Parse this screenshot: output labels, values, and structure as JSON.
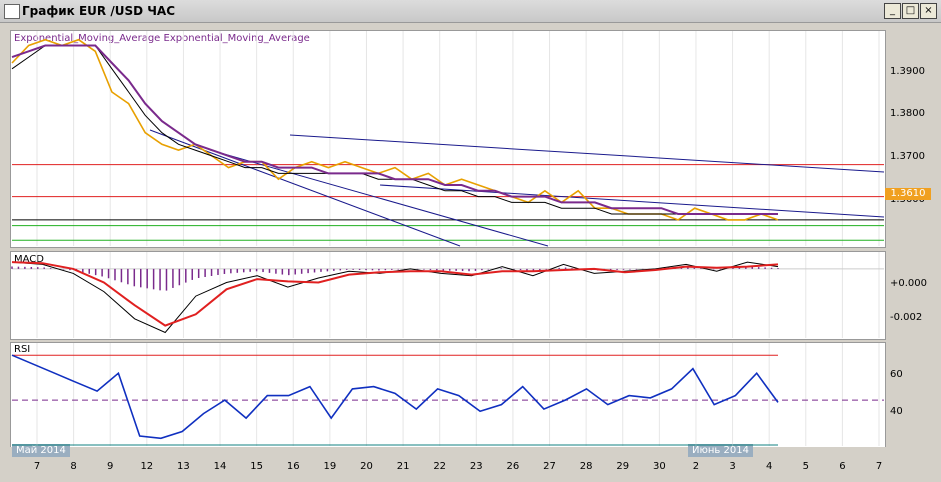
{
  "window": {
    "title": "График EUR /USD ЧАС",
    "buttons": {
      "minimize": "_",
      "restore": "□",
      "close": "×"
    }
  },
  "indicators": {
    "main_label": "Exponential_Moving_Average Exponential_Moving_Average",
    "macd_label": "MACD",
    "rsi_label": "RSI"
  },
  "axes": {
    "price_ticks": [
      "1.3900",
      "1.3800",
      "1.3700",
      "1.3600"
    ],
    "current_price": "1.3610",
    "macd_ticks": [
      "+0.000",
      "-0.002"
    ],
    "rsi_ticks": [
      "60",
      "40"
    ],
    "x_ticks": [
      "7",
      "8",
      "9",
      "12",
      "13",
      "14",
      "15",
      "16",
      "19",
      "20",
      "21",
      "22",
      "23",
      "26",
      "27",
      "28",
      "29",
      "30",
      "2",
      "3",
      "4",
      "5",
      "6",
      "7"
    ],
    "month_markers": [
      "Май 2014",
      "Июнь 2014"
    ]
  },
  "colors": {
    "price": "#e8a000",
    "ema_fast": "#000000",
    "ema_slow": "#7a2a8c",
    "trend": "#1a1a8c",
    "level_red": "#e02020",
    "level_green": "#20b020",
    "macd_signal": "#e02020",
    "macd_hist": "#7a2a8c",
    "rsi": "#1030c0",
    "rsi_high": "#e02020",
    "rsi_low": "#108080"
  },
  "chart_data": [
    {
      "type": "line",
      "title": "",
      "ylim": [
        1.3565,
        1.3935
      ],
      "series": [
        {
          "name": "",
          "values": [
            1.388,
            1.391,
            1.392,
            1.391,
            1.392,
            1.39,
            1.383,
            1.381,
            1.376,
            1.374,
            1.373,
            1.374,
            1.372,
            1.37,
            1.371,
            1.371,
            1.368,
            1.37,
            1.371,
            1.37,
            1.371,
            1.37,
            1.369,
            1.37,
            1.368,
            1.369,
            1.367,
            1.368,
            1.367,
            1.366,
            1.365,
            1.364,
            1.366,
            1.364,
            1.366,
            1.363,
            1.363,
            1.362,
            1.362,
            1.362,
            1.361,
            1.363,
            1.362,
            1.361,
            1.361,
            1.362,
            1.361
          ]
        },
        {
          "name": "",
          "values": [
            1.387,
            1.389,
            1.391,
            1.391,
            1.391,
            1.391,
            1.387,
            1.383,
            1.379,
            1.376,
            1.374,
            1.373,
            1.372,
            1.371,
            1.37,
            1.37,
            1.369,
            1.369,
            1.369,
            1.369,
            1.369,
            1.369,
            1.368,
            1.368,
            1.368,
            1.367,
            1.366,
            1.366,
            1.365,
            1.365,
            1.364,
            1.364,
            1.364,
            1.363,
            1.363,
            1.363,
            1.362,
            1.362,
            1.362,
            1.362,
            1.362,
            1.362,
            1.362,
            1.362,
            1.362,
            1.362,
            1.362
          ]
        },
        {
          "name": "",
          "values": [
            1.389,
            1.39,
            1.391,
            1.391,
            1.391,
            1.391,
            1.388,
            1.385,
            1.381,
            1.378,
            1.376,
            1.374,
            1.373,
            1.372,
            1.371,
            1.371,
            1.37,
            1.37,
            1.37,
            1.369,
            1.369,
            1.369,
            1.369,
            1.368,
            1.368,
            1.368,
            1.367,
            1.367,
            1.366,
            1.366,
            1.365,
            1.365,
            1.365,
            1.364,
            1.364,
            1.364,
            1.363,
            1.363,
            1.363,
            1.363,
            1.362,
            1.362,
            1.362,
            1.362,
            1.362,
            1.362,
            1.362
          ]
        }
      ],
      "horizontal_levels": [
        1.3705,
        1.365,
        1.361,
        1.36,
        1.3575
      ]
    },
    {
      "type": "line",
      "title": "MACD",
      "ylim": [
        -0.003,
        0.0007
      ],
      "series": [
        {
          "name": "",
          "values": [
            0.0003,
            0.0002,
            -0.0002,
            -0.001,
            -0.0022,
            -0.0028,
            -0.0012,
            -0.0006,
            -0.0003,
            -0.0008,
            -0.0004,
            -0.0001,
            -0.0002,
            0.0,
            -0.0002,
            -0.0003,
            0.0001,
            -0.0003,
            0.0002,
            -0.0002,
            -0.0001,
            0.0,
            0.0002,
            -0.0001,
            0.0003,
            0.0001
          ]
        }
      ]
    },
    {
      "type": "line",
      "title": "RSI",
      "ylim": [
        30,
        75
      ],
      "series": [
        {
          "name": "",
          "values": [
            70,
            66,
            62,
            58,
            54,
            62,
            34,
            33,
            36,
            44,
            50,
            42,
            52,
            52,
            56,
            42,
            55,
            56,
            53,
            46,
            55,
            52,
            45,
            48,
            56,
            46,
            50,
            55,
            48,
            52,
            51,
            55,
            64,
            48,
            52,
            62,
            49
          ]
        }
      ],
      "horizontal_levels": [
        70,
        50,
        30
      ]
    }
  ]
}
